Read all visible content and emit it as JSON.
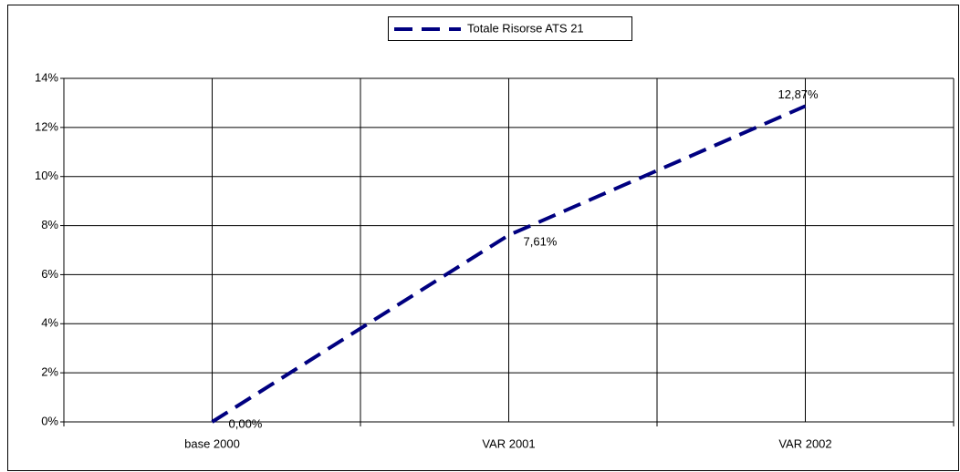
{
  "chart_data": {
    "type": "line",
    "categories": [
      "base 2000",
      "VAR 2001",
      "VAR 2002"
    ],
    "series": [
      {
        "name": "Totale Risorse ATS 21",
        "color": "#000080",
        "values": [
          0,
          7.61,
          12.87
        ],
        "value_labels": [
          "0,00%",
          "7,61%",
          "12,87%"
        ]
      }
    ],
    "ylim": [
      0,
      14
    ],
    "yticks": [
      {
        "value": 0,
        "label": "0%"
      },
      {
        "value": 2,
        "label": "2%"
      },
      {
        "value": 4,
        "label": "4%"
      },
      {
        "value": 6,
        "label": "6%"
      },
      {
        "value": 8,
        "label": "8%"
      },
      {
        "value": 10,
        "label": "10%"
      },
      {
        "value": 12,
        "label": "12%"
      },
      {
        "value": 14,
        "label": "14%"
      }
    ],
    "grid": true,
    "legend": "top"
  }
}
